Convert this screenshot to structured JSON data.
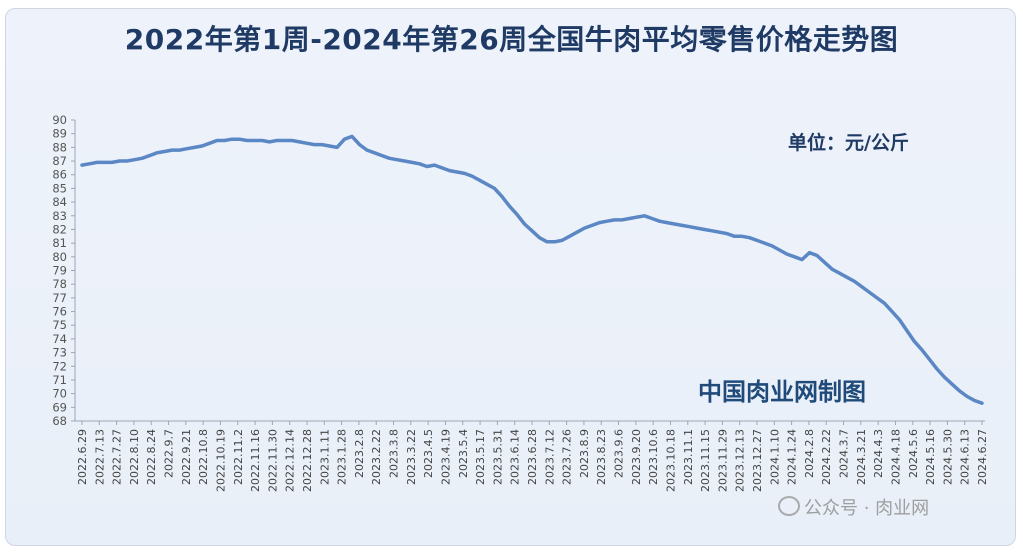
{
  "chart_data": {
    "type": "line",
    "title": "2022年第1周-2024年第26周全国牛肉平均零售价格走势图",
    "unit_label": "单位：元/公斤",
    "maker_label": "中国肉业网制图",
    "watermark": "公众号 · 肉业网",
    "ylim": [
      68,
      90
    ],
    "yticks": [
      68,
      69,
      70,
      71,
      72,
      73,
      74,
      75,
      76,
      77,
      78,
      79,
      80,
      81,
      82,
      83,
      84,
      85,
      86,
      87,
      88,
      89,
      90
    ],
    "grid": false,
    "legend": "none",
    "line_color": "#5b87c5",
    "x_labels": [
      "2022.6.29",
      "2022.7.13",
      "2022.7.27",
      "2022.8.10",
      "2022.8.24",
      "2022.9.7",
      "2022.9.21",
      "2022.10.8",
      "2022.10.19",
      "2022.11.2",
      "2022.11.16",
      "2022.11.30",
      "2022.12.14",
      "2022.12.28",
      "2023.1.11",
      "2023.1.28",
      "2023.2.8",
      "2023.2.22",
      "2023.3.8",
      "2023.3.22",
      "2023.4.5",
      "2023.4.19",
      "2023.5.4",
      "2023.5.17",
      "2023.5.31",
      "2023.6.14",
      "2023.6.28",
      "2023.7.12",
      "2023.7.26",
      "2023.8.9",
      "2023.8.23",
      "2023.9.6",
      "2023.9.20",
      "2023.10.6",
      "2023.10.18",
      "2023.11.1",
      "2023.11.15",
      "2023.11.29",
      "2023.12.13",
      "2023.12.27",
      "2024.1.10",
      "2024.1.24",
      "2024.2.8",
      "2024.2.22",
      "2024.3.7",
      "2024.3.21",
      "2024.4.3",
      "2024.4.18",
      "2024.5.6",
      "2024.5.16",
      "2024.5.30",
      "2024.6.13",
      "2024.6.27"
    ],
    "values": [
      86.7,
      86.8,
      86.9,
      86.9,
      86.9,
      87.0,
      87.0,
      87.1,
      87.2,
      87.4,
      87.6,
      87.7,
      87.8,
      87.8,
      87.9,
      88.0,
      88.1,
      88.3,
      88.5,
      88.5,
      88.6,
      88.6,
      88.5,
      88.5,
      88.5,
      88.4,
      88.5,
      88.5,
      88.5,
      88.4,
      88.3,
      88.2,
      88.2,
      88.1,
      88.0,
      88.6,
      88.8,
      88.2,
      87.8,
      87.6,
      87.4,
      87.2,
      87.1,
      87.0,
      86.9,
      86.8,
      86.6,
      86.7,
      86.5,
      86.3,
      86.2,
      86.1,
      85.9,
      85.6,
      85.3,
      85.0,
      84.4,
      83.7,
      83.1,
      82.4,
      81.9,
      81.4,
      81.1,
      81.1,
      81.2,
      81.5,
      81.8,
      82.1,
      82.3,
      82.5,
      82.6,
      82.7,
      82.7,
      82.8,
      82.9,
      83.0,
      82.8,
      82.6,
      82.5,
      82.4,
      82.3,
      82.2,
      82.1,
      82.0,
      81.9,
      81.8,
      81.7,
      81.5,
      81.5,
      81.4,
      81.2,
      81.0,
      80.8,
      80.5,
      80.2,
      80.0,
      79.8,
      80.3,
      80.1,
      79.6,
      79.1,
      78.8,
      78.5,
      78.2,
      77.8,
      77.4,
      77.0,
      76.6,
      76.0,
      75.4,
      74.6,
      73.8,
      73.2,
      72.5,
      71.8,
      71.2,
      70.7,
      70.2,
      69.8,
      69.5,
      69.3
    ]
  }
}
